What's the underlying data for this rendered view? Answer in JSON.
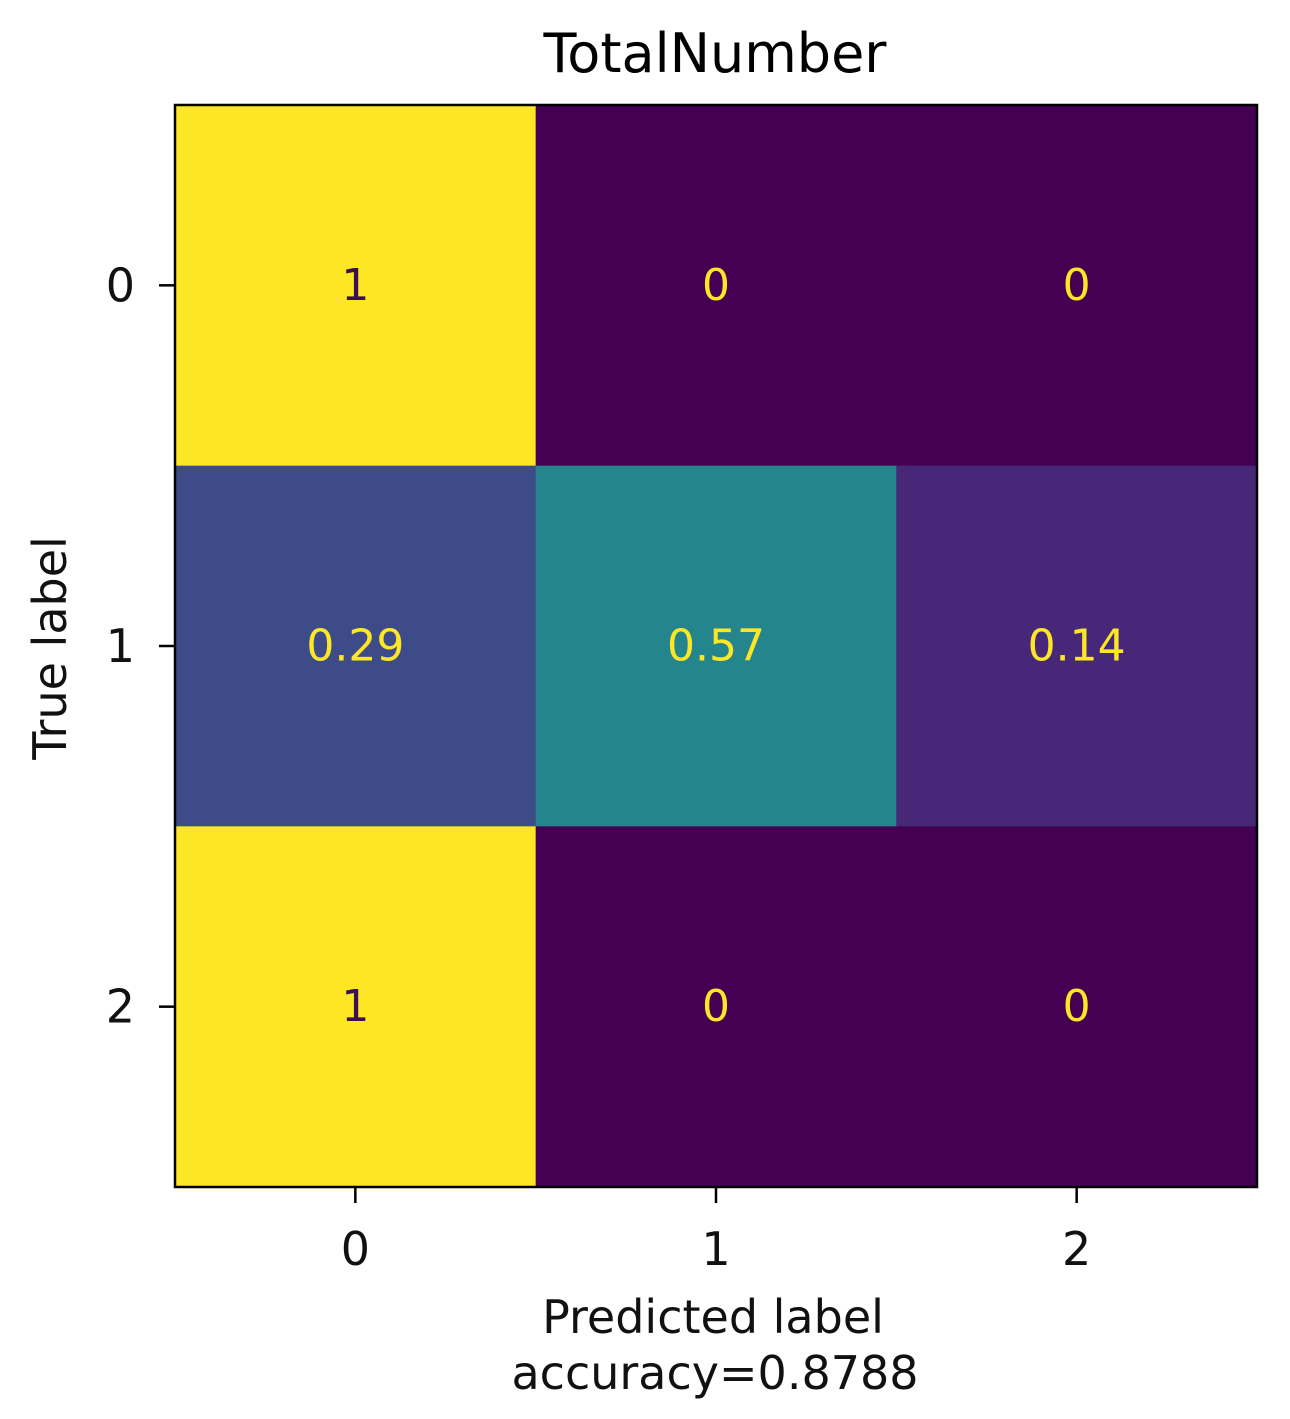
{
  "chart_data": {
    "type": "heatmap",
    "title": "TotalNumber",
    "xlabel": "Predicted label",
    "ylabel": "True label",
    "caption": "accuracy=0.8788",
    "x_ticks": [
      "0",
      "1",
      "2"
    ],
    "y_ticks": [
      "0",
      "1",
      "2"
    ],
    "matrix": [
      [
        1,
        0,
        0
      ],
      [
        0.29,
        0.57,
        0.14
      ],
      [
        1,
        0,
        0
      ]
    ],
    "cell_labels": [
      [
        "1",
        "0",
        "0"
      ],
      [
        "0.29",
        "0.57",
        "0.14"
      ],
      [
        "1",
        "0",
        "0"
      ]
    ],
    "value_range": [
      0,
      1
    ],
    "colormap": "viridis",
    "colorbar": false,
    "grid": false
  }
}
